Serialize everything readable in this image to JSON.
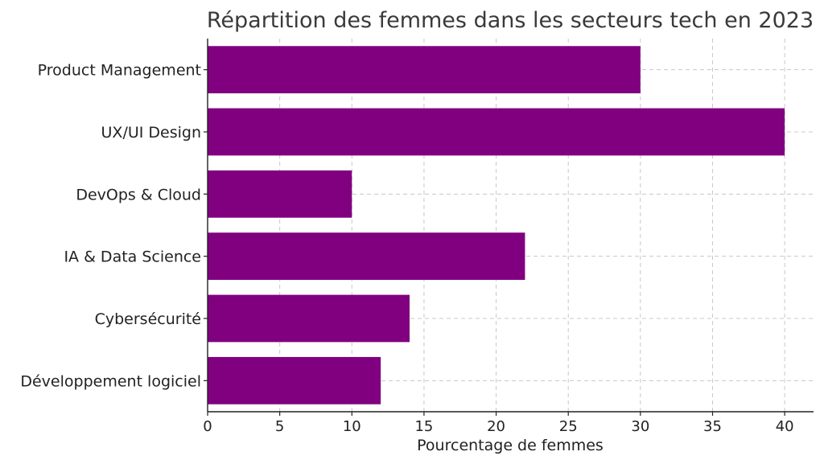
{
  "chart_data": {
    "type": "bar",
    "orientation": "horizontal",
    "title": "Répartition des femmes dans les secteurs tech en 2023",
    "xlabel": "Pourcentage de femmes",
    "ylabel": "",
    "categories": [
      "Développement logiciel",
      "Cybersécurité",
      "IA & Data Science",
      "DevOps & Cloud",
      "UX/UI Design",
      "Product Management"
    ],
    "values": [
      12,
      14,
      22,
      10,
      40,
      30
    ],
    "xlim": [
      0,
      42
    ],
    "xticks": [
      0,
      5,
      10,
      15,
      20,
      25,
      30,
      35,
      40
    ],
    "grid": true,
    "bar_color": "#800080"
  }
}
